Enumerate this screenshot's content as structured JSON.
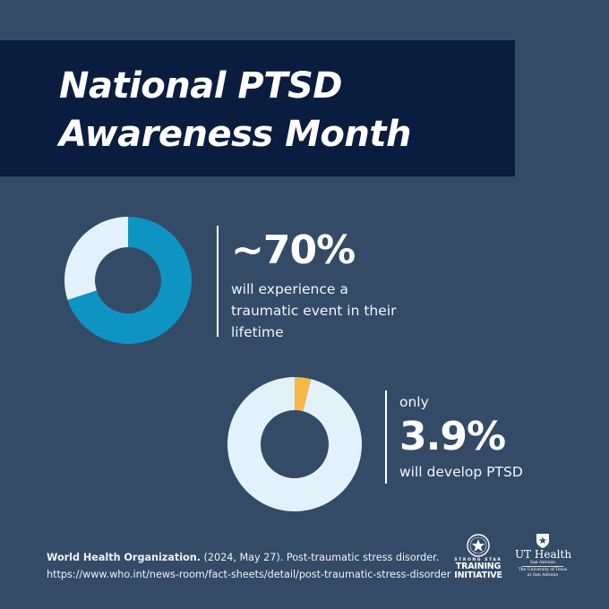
{
  "title": {
    "line1": "National PTSD",
    "line2": "Awareness Month"
  },
  "stat1": {
    "value": "~70%",
    "percent": 70,
    "desc_lines": [
      "will experience a",
      "traumatic event in their",
      "lifetime"
    ],
    "colors": {
      "filled": "#0e94c2",
      "rest": "#e3f1fa"
    }
  },
  "stat2": {
    "prefix": "only",
    "value": "3.9%",
    "percent": 3.9,
    "desc": "will develop PTSD",
    "colors": {
      "filled": "#f5b944",
      "rest": "#e3f1fa"
    }
  },
  "citation": {
    "source": "World Health Organization.",
    "details": " (2024, May 27). Post-traumatic stress disorder.",
    "url": "https://www.who.int/news-room/fact-sheets/detail/post-traumatic-stress-disorder"
  },
  "logos": {
    "strong_star": {
      "tagline": "STRONG STAR",
      "line1": "TRAINING",
      "line2": "INITIATIVE"
    },
    "ut_health": {
      "name": "UT Health",
      "place": "San Antonio",
      "sub1": "The University of Texas",
      "sub2": "at San Antonio"
    }
  },
  "colors": {
    "background": "#344b68",
    "title_band": "#0b1d3f"
  }
}
